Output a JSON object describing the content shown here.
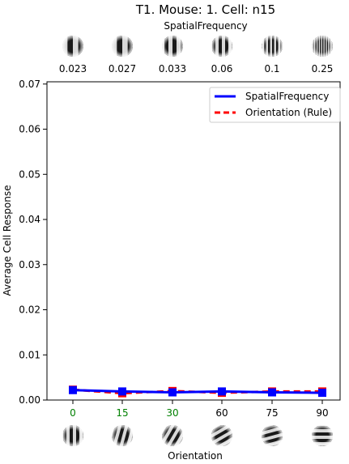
{
  "chart_data": {
    "type": "line",
    "title": "T1. Mouse: 1. Cell: n15",
    "top_axis": {
      "label": "SpatialFrequency",
      "ticks": [
        "0.023",
        "0.027",
        "0.033",
        "0.06",
        "0.1",
        "0.25"
      ],
      "grating_stripes": [
        3,
        3,
        4,
        5,
        8,
        14
      ]
    },
    "xlabel": "Orientation",
    "ylabel": "Average Cell Response",
    "categories": [
      "0",
      "15",
      "30",
      "60",
      "75",
      "90"
    ],
    "category_colors": [
      "#008000",
      "#008000",
      "#008000",
      "#000000",
      "#000000",
      "#000000"
    ],
    "grating_angles": [
      0,
      15,
      30,
      60,
      75,
      90
    ],
    "ylim": [
      0,
      0.0705
    ],
    "yticks": [
      0.0,
      0.01,
      0.02,
      0.03,
      0.04,
      0.05,
      0.06,
      0.07
    ],
    "ytick_labels": [
      "0.00",
      "0.01",
      "0.02",
      "0.03",
      "0.04",
      "0.05",
      "0.06",
      "0.07"
    ],
    "grid": false,
    "legend": "top-right",
    "series": [
      {
        "name": "SpatialFrequency",
        "color": "#0000ff",
        "style": "solid",
        "marker": "square",
        "values": [
          0.0022,
          0.0019,
          0.0017,
          0.0019,
          0.0017,
          0.0016
        ]
      },
      {
        "name": "Orientation (Rule)",
        "color": "#ff0000",
        "style": "dashed",
        "marker": "square",
        "values": [
          0.0023,
          0.0015,
          0.002,
          0.0016,
          0.0019,
          0.0019
        ]
      }
    ]
  }
}
